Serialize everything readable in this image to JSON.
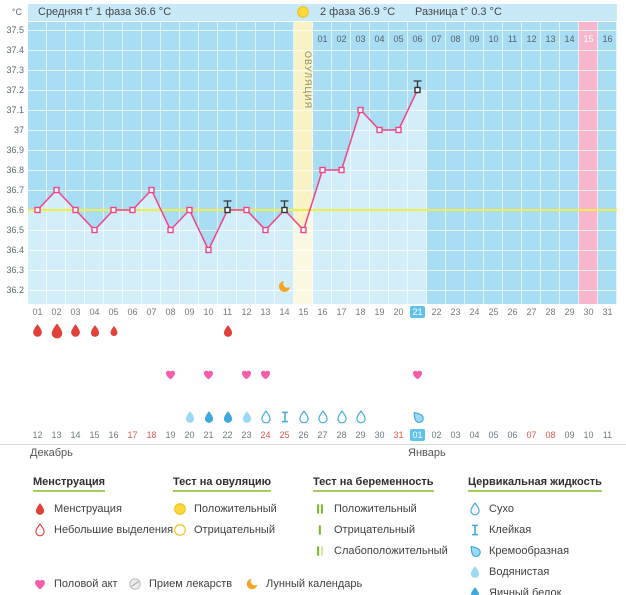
{
  "header": {
    "avg_phase1": "Средняя t° 1 фаза 36.6 °C",
    "phase2": "2 фаза 36.9 °C",
    "diff": "Разница t° 0.3 °C"
  },
  "axis": {
    "unit": "°C",
    "y_ticks": [
      "37.5",
      "37.4",
      "37.3",
      "37.2",
      "37.1",
      "37",
      "36.9",
      "36.8",
      "36.7",
      "36.6",
      "36.5",
      "36.4",
      "36.3",
      "36.2"
    ],
    "cycle_days": [
      "01",
      "02",
      "03",
      "04",
      "05",
      "06",
      "07",
      "08",
      "09",
      "10",
      "11",
      "12",
      "13",
      "14",
      "15",
      "16",
      "17",
      "18",
      "19",
      "20",
      "21",
      "22",
      "23",
      "24",
      "25",
      "26",
      "27",
      "28",
      "29",
      "30",
      "31"
    ],
    "current_cycle_day": "21",
    "post_ovulation_days": [
      "01",
      "02",
      "03",
      "04",
      "05",
      "06",
      "07",
      "08",
      "09",
      "10",
      "11",
      "12",
      "13",
      "14",
      "15",
      "16"
    ],
    "post_ovulation_highlight": "15",
    "ovulation_label": "ОВУЛЯЦИЯ"
  },
  "chart_data": {
    "type": "line",
    "x": [
      1,
      2,
      3,
      4,
      5,
      6,
      7,
      8,
      9,
      10,
      11,
      12,
      13,
      14,
      15,
      16,
      17,
      18,
      19,
      20,
      21
    ],
    "values": [
      36.6,
      36.7,
      36.6,
      36.5,
      36.6,
      36.6,
      36.7,
      36.5,
      36.6,
      36.4,
      36.6,
      36.6,
      36.5,
      36.6,
      36.5,
      36.8,
      36.8,
      37.1,
      37.0,
      37.0,
      37.2
    ],
    "ylim": [
      36.2,
      37.5
    ],
    "y_step": 0.1,
    "coverline": 36.6,
    "ovulation_day": 15,
    "predicted_period_day": 30,
    "days_shown": 31,
    "grid": true,
    "legend_position": "bottom"
  },
  "events": {
    "time_deviation_days": [
      11,
      14,
      21
    ],
    "moon_day": 14,
    "ovulation_test_positive_day": 15,
    "menstruation": [
      {
        "day": 1,
        "size": 15
      },
      {
        "day": 2,
        "size": 18
      },
      {
        "day": 3,
        "size": 15
      },
      {
        "day": 4,
        "size": 14
      },
      {
        "day": 5,
        "size": 12
      },
      {
        "day": 11,
        "size": 14
      }
    ],
    "intercourse_days": [
      8,
      10,
      12,
      13,
      21
    ],
    "cervical_fluid": [
      {
        "day": 9,
        "type": "Водянистая"
      },
      {
        "day": 10,
        "type": "Яичный белок"
      },
      {
        "day": 11,
        "type": "Яичный белок"
      },
      {
        "day": 12,
        "type": "Водянистая"
      },
      {
        "day": 13,
        "type": "Сухо"
      },
      {
        "day": 14,
        "type": "Клейкая"
      },
      {
        "day": 15,
        "type": "Сухо"
      },
      {
        "day": 16,
        "type": "Сухо"
      },
      {
        "day": 17,
        "type": "Сухо"
      },
      {
        "day": 18,
        "type": "Сухо"
      },
      {
        "day": 21,
        "type": "Кремообразная"
      }
    ]
  },
  "calendar": {
    "dates": [
      "12",
      "13",
      "14",
      "15",
      "16",
      "17",
      "18",
      "19",
      "20",
      "21",
      "22",
      "23",
      "24",
      "25",
      "26",
      "27",
      "28",
      "29",
      "30",
      "31",
      "01",
      "02",
      "03",
      "04",
      "05",
      "06",
      "07",
      "08",
      "09",
      "10",
      "11"
    ],
    "red_indices": [
      5,
      6,
      12,
      13,
      19,
      26,
      27
    ],
    "today_index": 20,
    "month_left": "Декабрь",
    "month_right": "Январь"
  },
  "legend": {
    "sections": [
      {
        "title": "Менструация",
        "items": [
          {
            "icon": "drop-red",
            "label": "Менструация"
          },
          {
            "icon": "drop-red-outline",
            "label": "Небольшие выделения"
          }
        ]
      },
      {
        "title": "Тест на овуляцию",
        "items": [
          {
            "icon": "circle-yellow",
            "label": "Положительный"
          },
          {
            "icon": "circle-yellow-outline",
            "label": "Отрицательный"
          }
        ]
      },
      {
        "title": "Тест на беременность",
        "items": [
          {
            "icon": "bars-positive",
            "label": "Положительный"
          },
          {
            "icon": "bars-negative",
            "label": "Отрицательный"
          },
          {
            "icon": "bars-weak",
            "label": "Слабоположительный"
          }
        ]
      },
      {
        "title": "Цервикальная жидкость",
        "items": [
          {
            "icon": "fluid-dry",
            "label": "Сухо"
          },
          {
            "icon": "fluid-sticky",
            "label": "Клейкая"
          },
          {
            "icon": "fluid-creamy",
            "label": "Кремообразная"
          },
          {
            "icon": "fluid-watery",
            "label": "Водянистая"
          },
          {
            "icon": "fluid-eggwhite",
            "label": "Яичный белок"
          }
        ]
      }
    ],
    "footer_items": [
      {
        "icon": "heart-pink",
        "label": "Половой акт"
      },
      {
        "icon": "pill",
        "label": "Прием лекарств"
      },
      {
        "icon": "moon",
        "label": "Лунный календарь"
      }
    ]
  },
  "colors": {
    "red": "#e2403a",
    "yellow": "#ffd83b",
    "yellow_dark": "#f0c419",
    "green": "#76b82a",
    "green_pale": "#cfe6a0",
    "blue": "#3fa9dd",
    "blue_light": "#9bd9f6",
    "pink": "#f85ba9",
    "orange": "#f6a623",
    "line": "#ef4586",
    "coverline": "#f2ee4e",
    "chart_bg": "#a9ddf3",
    "ovulation_col": "#f9f3c5",
    "period_col": "#f7b6cd",
    "today": "#5ec1ee",
    "header_bg": "#c7e9f8",
    "date_red": "#e0584b",
    "legend_underline": "#a5cd60"
  }
}
